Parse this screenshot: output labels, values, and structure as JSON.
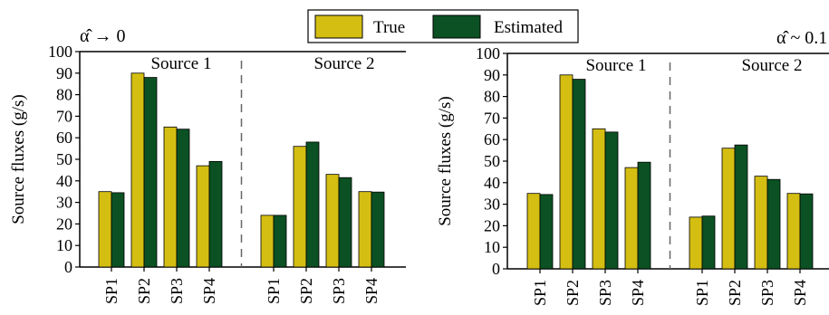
{
  "legend": {
    "items": [
      {
        "label": "True",
        "color": "#d4be12"
      },
      {
        "label": "Estimated",
        "color": "#0b5123"
      }
    ]
  },
  "chart_data": [
    {
      "type": "bar",
      "title": "α̂ → 0",
      "ylabel": "Source fluxes (g/s)",
      "ylim": [
        0,
        100
      ],
      "yticks": [
        0,
        10,
        20,
        30,
        40,
        50,
        60,
        70,
        80,
        90,
        100
      ],
      "groups": [
        {
          "name": "Source 1",
          "categories": [
            "SP1",
            "SP2",
            "SP3",
            "SP4"
          ]
        },
        {
          "name": "Source 2",
          "categories": [
            "SP1",
            "SP2",
            "SP3",
            "SP4"
          ]
        }
      ],
      "series": [
        {
          "name": "True",
          "values": [
            35,
            90,
            65,
            47,
            24,
            56,
            43,
            35
          ]
        },
        {
          "name": "Estimated",
          "values": [
            34.5,
            88,
            64,
            49,
            24,
            58,
            41.5,
            34.8
          ]
        }
      ]
    },
    {
      "type": "bar",
      "title": "α̂ ~ 0.1",
      "ylabel": "Source fluxes (g/s)",
      "ylim": [
        0,
        100
      ],
      "yticks": [
        0,
        10,
        20,
        30,
        40,
        50,
        60,
        70,
        80,
        90,
        100
      ],
      "groups": [
        {
          "name": "Source 1",
          "categories": [
            "SP1",
            "SP2",
            "SP3",
            "SP4"
          ]
        },
        {
          "name": "Source 2",
          "categories": [
            "SP1",
            "SP2",
            "SP3",
            "SP4"
          ]
        }
      ],
      "series": [
        {
          "name": "True",
          "values": [
            35,
            90,
            65,
            47,
            24,
            56,
            43,
            35
          ]
        },
        {
          "name": "Estimated",
          "values": [
            34.5,
            88,
            63.5,
            49.5,
            24.5,
            57.5,
            41.5,
            34.8
          ]
        }
      ]
    }
  ]
}
